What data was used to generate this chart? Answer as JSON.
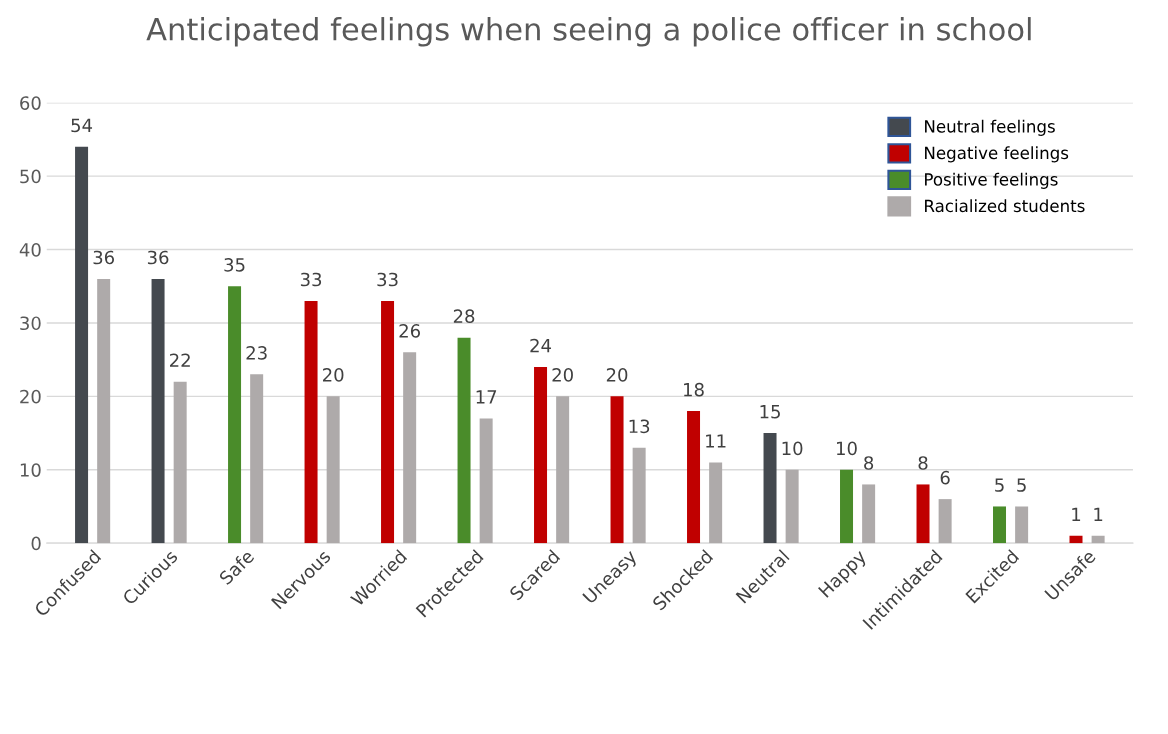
{
  "chart_data": {
    "type": "bar",
    "title": "Anticipated feelings when seeing a police officer in school",
    "categories": [
      "Confused",
      "Curious",
      "Safe",
      "Nervous",
      "Worried",
      "Protected",
      "Scared",
      "Uneasy",
      "Shocked",
      "Neutral",
      "Happy",
      "Intimidated",
      "Excited",
      "Unsafe"
    ],
    "series": [
      {
        "name": "Neutral feelings",
        "color": "#44494f",
        "values": [
          54,
          36,
          null,
          null,
          null,
          null,
          null,
          null,
          null,
          15,
          null,
          null,
          null,
          null
        ]
      },
      {
        "name": "Negative feelings",
        "color": "#c00000",
        "values": [
          null,
          null,
          null,
          33,
          33,
          null,
          24,
          20,
          18,
          null,
          null,
          8,
          null,
          1
        ]
      },
      {
        "name": "Positive feelings",
        "color": "#4a8c2a",
        "values": [
          null,
          null,
          35,
          null,
          null,
          28,
          null,
          null,
          null,
          null,
          10,
          null,
          5,
          null
        ]
      },
      {
        "name": "Racialized students",
        "color": "#aeaaaa",
        "values": [
          36,
          22,
          23,
          20,
          26,
          17,
          20,
          13,
          11,
          10,
          8,
          6,
          5,
          1
        ]
      }
    ],
    "ylim": [
      0,
      60
    ],
    "yticks": [
      0,
      10,
      20,
      30,
      40,
      50,
      60
    ],
    "grid": "y",
    "data_labels": true,
    "legend": "top right"
  }
}
